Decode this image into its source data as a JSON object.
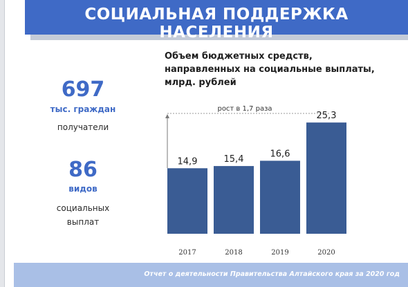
{
  "header": {
    "title": "СОЦИАЛЬНАЯ ПОДДЕРЖКА НАСЕЛЕНИЯ"
  },
  "stats": [
    {
      "number": "697",
      "unit": "тыс. граждан",
      "label_lines": [
        "получатели"
      ]
    },
    {
      "number": "86",
      "unit": "видов",
      "label_lines": [
        "социальных",
        "выплат"
      ]
    }
  ],
  "chart": {
    "title_lines": [
      "Объем бюджетных средств,",
      "направленных на социальные выплаты,",
      "млрд. рублей"
    ],
    "annotation": "рост в 1,7 раза"
  },
  "chart_data": {
    "type": "bar",
    "title": "Объем бюджетных средств, направленных на социальные выплаты, млрд. рублей",
    "categories": [
      "2017",
      "2018",
      "2019",
      "2020"
    ],
    "values": [
      14.9,
      15.4,
      16.6,
      25.3
    ],
    "value_labels": [
      "14,9",
      "15,4",
      "16,6",
      "25,3"
    ],
    "bar_color": "#3a5c94",
    "grid": false,
    "xlabel": "",
    "ylabel": "",
    "ylim": [
      0,
      28
    ]
  },
  "footer": {
    "text": "Отчет о деятельности Правительства Алтайского края за 2020 год"
  },
  "colors": {
    "brand_blue": "#3f6ac6",
    "bar": "#3a5c94",
    "footer": "#a9bfe6"
  }
}
